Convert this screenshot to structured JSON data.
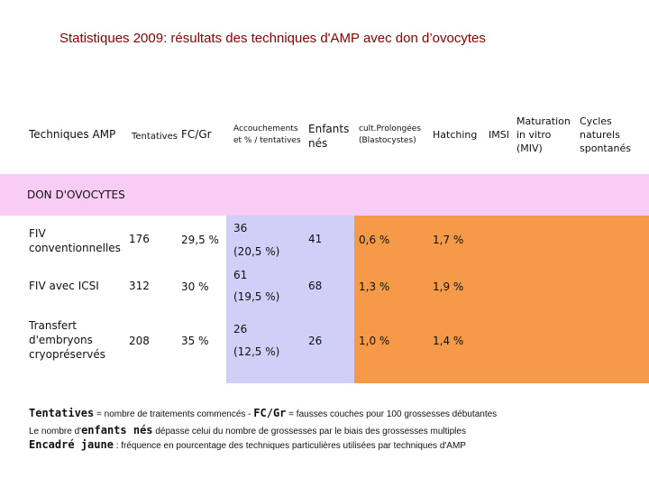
{
  "title": "Statistiques 2009: résultats des techniques d'AMP avec don d’ovocytes",
  "headers": {
    "technique": "Techniques AMP",
    "tentatives": "Tentatives",
    "fcgr": "FC/Gr",
    "accouchements_1": "Accouchements",
    "accouchements_2": "et % / tentatives",
    "enfants_1": "Enfants",
    "enfants_2": "nés",
    "cult_1": "cult.Prolongées",
    "cult_2": "(Blastocystes)",
    "hatching": "Hatching",
    "imsi": "IMSI",
    "maturation_1": "Maturation",
    "maturation_2": "in vitro",
    "maturation_3": "(MIV)",
    "cycles_1": "Cycles",
    "cycles_2": "naturels",
    "cycles_3": "spontanés"
  },
  "section_label": "DON D'OVOCYTES",
  "rows": [
    {
      "technique_1": "FIV",
      "technique_2": "conventionnelles",
      "technique_3": "",
      "tentatives": "176",
      "fcgr": "29,5 %",
      "acc_count": "36",
      "acc_pct": "(20,5 %)",
      "enfants": "41",
      "cult": "0,6 %",
      "hatching": "1,7 %"
    },
    {
      "technique_1": "FIV avec ICSI",
      "technique_2": "",
      "technique_3": "",
      "tentatives": "312",
      "fcgr": "30 %",
      "acc_count": "61",
      "acc_pct": "(19,5 %)",
      "enfants": "68",
      "cult": "1,3 %",
      "hatching": "1,9 %"
    },
    {
      "technique_1": "Transfert",
      "technique_2": "d'embryons",
      "technique_3": "cryopréservés",
      "tentatives": "208",
      "fcgr": "35 %",
      "acc_count": "26",
      "acc_pct": "(12,5 %)",
      "enfants": "26",
      "cult": "1,0 %",
      "hatching": "1,4 %"
    }
  ],
  "footnotes": {
    "line1_term1": "Tentatives",
    "line1_text1": " = nombre de traitements commencés - ",
    "line1_term2": "FC/Gr",
    "line1_text2": " = fausses couches pour 100 grossesses débutantes",
    "line2_text1": "Le nombre d'",
    "line2_term": "enfants nés",
    "line2_text2": " dépasse celui du nombre de grossesses par le biais des grossesses multiples",
    "line3_term": "Encadré jaune",
    "line3_text": " : fréquence en pourcentage des techniques particulières utilisées par techniques d'AMP"
  },
  "colors": {
    "title": "#8b0000",
    "section_band": "#f9ccf6",
    "lavender_column": "#cfcff7",
    "orange_block": "#f59a48"
  }
}
